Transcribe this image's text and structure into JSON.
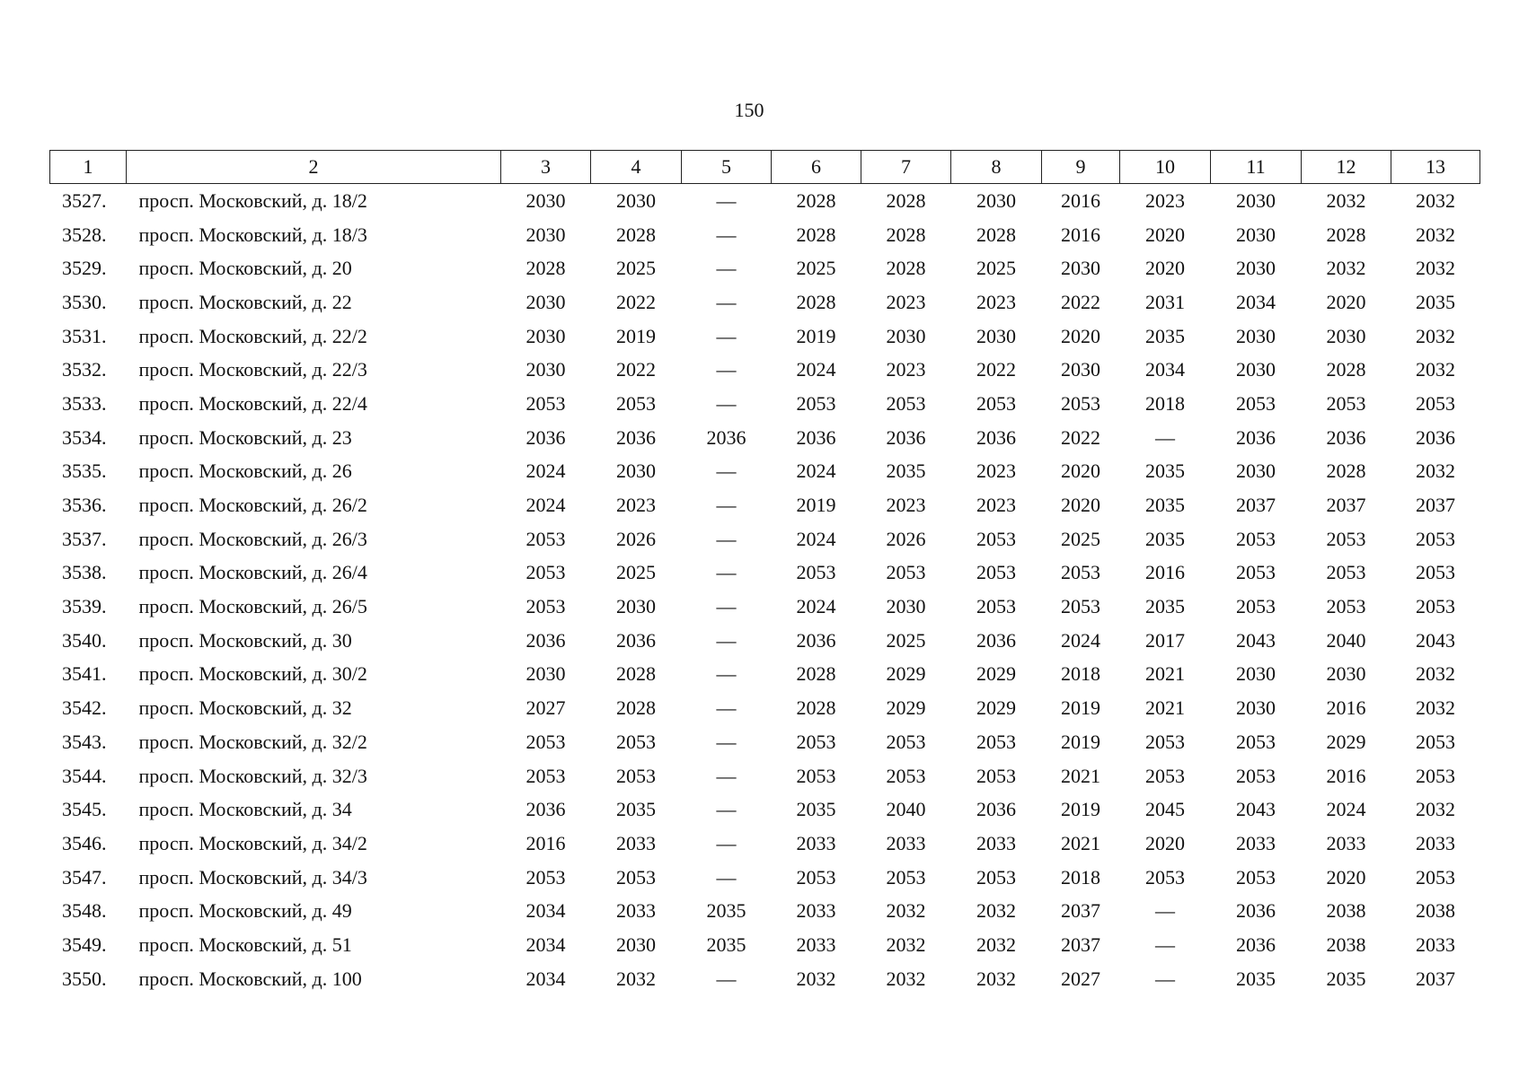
{
  "page_number": "150",
  "table": {
    "header": [
      "1",
      "2",
      "3",
      "4",
      "5",
      "6",
      "7",
      "8",
      "9",
      "10",
      "11",
      "12",
      "13"
    ],
    "rows": [
      [
        "3527.",
        "просп. Московский, д. 18/2",
        "2030",
        "2030",
        "—",
        "2028",
        "2028",
        "2030",
        "2016",
        "2023",
        "2030",
        "2032",
        "2032"
      ],
      [
        "3528.",
        "просп. Московский, д. 18/3",
        "2030",
        "2028",
        "—",
        "2028",
        "2028",
        "2028",
        "2016",
        "2020",
        "2030",
        "2028",
        "2032"
      ],
      [
        "3529.",
        "просп. Московский, д. 20",
        "2028",
        "2025",
        "—",
        "2025",
        "2028",
        "2025",
        "2030",
        "2020",
        "2030",
        "2032",
        "2032"
      ],
      [
        "3530.",
        "просп. Московский, д. 22",
        "2030",
        "2022",
        "—",
        "2028",
        "2023",
        "2023",
        "2022",
        "2031",
        "2034",
        "2020",
        "2035"
      ],
      [
        "3531.",
        "просп. Московский, д. 22/2",
        "2030",
        "2019",
        "—",
        "2019",
        "2030",
        "2030",
        "2020",
        "2035",
        "2030",
        "2030",
        "2032"
      ],
      [
        "3532.",
        "просп. Московский, д. 22/3",
        "2030",
        "2022",
        "—",
        "2024",
        "2023",
        "2022",
        "2030",
        "2034",
        "2030",
        "2028",
        "2032"
      ],
      [
        "3533.",
        "просп. Московский, д. 22/4",
        "2053",
        "2053",
        "—",
        "2053",
        "2053",
        "2053",
        "2053",
        "2018",
        "2053",
        "2053",
        "2053"
      ],
      [
        "3534.",
        "просп. Московский, д. 23",
        "2036",
        "2036",
        "2036",
        "2036",
        "2036",
        "2036",
        "2022",
        "—",
        "2036",
        "2036",
        "2036"
      ],
      [
        "3535.",
        "просп. Московский, д. 26",
        "2024",
        "2030",
        "—",
        "2024",
        "2035",
        "2023",
        "2020",
        "2035",
        "2030",
        "2028",
        "2032"
      ],
      [
        "3536.",
        "просп. Московский, д. 26/2",
        "2024",
        "2023",
        "—",
        "2019",
        "2023",
        "2023",
        "2020",
        "2035",
        "2037",
        "2037",
        "2037"
      ],
      [
        "3537.",
        "просп. Московский, д. 26/3",
        "2053",
        "2026",
        "—",
        "2024",
        "2026",
        "2053",
        "2025",
        "2035",
        "2053",
        "2053",
        "2053"
      ],
      [
        "3538.",
        "просп. Московский, д. 26/4",
        "2053",
        "2025",
        "—",
        "2053",
        "2053",
        "2053",
        "2053",
        "2016",
        "2053",
        "2053",
        "2053"
      ],
      [
        "3539.",
        "просп. Московский, д. 26/5",
        "2053",
        "2030",
        "—",
        "2024",
        "2030",
        "2053",
        "2053",
        "2035",
        "2053",
        "2053",
        "2053"
      ],
      [
        "3540.",
        "просп. Московский, д. 30",
        "2036",
        "2036",
        "—",
        "2036",
        "2025",
        "2036",
        "2024",
        "2017",
        "2043",
        "2040",
        "2043"
      ],
      [
        "3541.",
        "просп. Московский, д. 30/2",
        "2030",
        "2028",
        "—",
        "2028",
        "2029",
        "2029",
        "2018",
        "2021",
        "2030",
        "2030",
        "2032"
      ],
      [
        "3542.",
        "просп. Московский, д. 32",
        "2027",
        "2028",
        "—",
        "2028",
        "2029",
        "2029",
        "2019",
        "2021",
        "2030",
        "2016",
        "2032"
      ],
      [
        "3543.",
        "просп. Московский, д. 32/2",
        "2053",
        "2053",
        "—",
        "2053",
        "2053",
        "2053",
        "2019",
        "2053",
        "2053",
        "2029",
        "2053"
      ],
      [
        "3544.",
        "просп. Московский, д. 32/3",
        "2053",
        "2053",
        "—",
        "2053",
        "2053",
        "2053",
        "2021",
        "2053",
        "2053",
        "2016",
        "2053"
      ],
      [
        "3545.",
        "просп. Московский, д. 34",
        "2036",
        "2035",
        "—",
        "2035",
        "2040",
        "2036",
        "2019",
        "2045",
        "2043",
        "2024",
        "2032"
      ],
      [
        "3546.",
        "просп. Московский, д. 34/2",
        "2016",
        "2033",
        "—",
        "2033",
        "2033",
        "2033",
        "2021",
        "2020",
        "2033",
        "2033",
        "2033"
      ],
      [
        "3547.",
        "просп. Московский, д. 34/3",
        "2053",
        "2053",
        "—",
        "2053",
        "2053",
        "2053",
        "2018",
        "2053",
        "2053",
        "2020",
        "2053"
      ],
      [
        "3548.",
        "просп. Московский, д. 49",
        "2034",
        "2033",
        "2035",
        "2033",
        "2032",
        "2032",
        "2037",
        "—",
        "2036",
        "2038",
        "2038"
      ],
      [
        "3549.",
        "просп. Московский, д. 51",
        "2034",
        "2030",
        "2035",
        "2033",
        "2032",
        "2032",
        "2037",
        "—",
        "2036",
        "2038",
        "2033"
      ],
      [
        "3550.",
        "просп. Московский, д. 100",
        "2034",
        "2032",
        "—",
        "2032",
        "2032",
        "2032",
        "2027",
        "—",
        "2035",
        "2035",
        "2037"
      ]
    ]
  }
}
